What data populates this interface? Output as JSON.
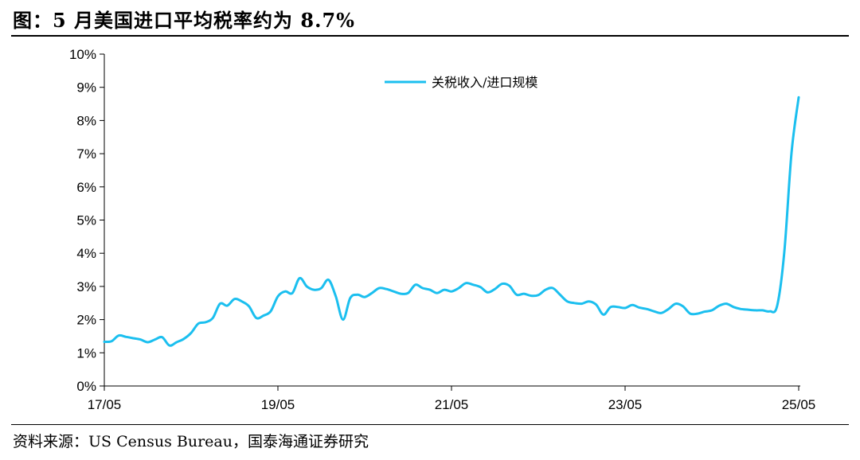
{
  "title": "图：5 月美国进口平均税率约为 8.7%",
  "source": "资料来源：US Census Bureau，国泰海通证券研究",
  "chart_data": {
    "type": "line",
    "ylim": [
      0,
      10
    ],
    "yticks": [
      "0%",
      "1%",
      "2%",
      "3%",
      "4%",
      "5%",
      "6%",
      "7%",
      "8%",
      "9%",
      "10%"
    ],
    "xticks": [
      {
        "label": "17/05",
        "pos": 0
      },
      {
        "label": "19/05",
        "pos": 24
      },
      {
        "label": "21/05",
        "pos": 48
      },
      {
        "label": "23/05",
        "pos": 72
      },
      {
        "label": "25/05",
        "pos": 96
      }
    ],
    "x_first": "2017-05",
    "x_last": "2025-05",
    "grid": false,
    "legend_position": "top-center",
    "series": [
      {
        "name": "关税收入/进口规模",
        "color": "#1BBFEF",
        "values": [
          1.33,
          1.35,
          1.52,
          1.48,
          1.44,
          1.4,
          1.32,
          1.4,
          1.47,
          1.22,
          1.32,
          1.42,
          1.6,
          1.88,
          1.92,
          2.05,
          2.48,
          2.42,
          2.62,
          2.55,
          2.4,
          2.05,
          2.12,
          2.25,
          2.7,
          2.85,
          2.8,
          3.25,
          3.0,
          2.9,
          2.95,
          3.2,
          2.7,
          2.0,
          2.65,
          2.75,
          2.68,
          2.8,
          2.95,
          2.92,
          2.85,
          2.78,
          2.8,
          3.05,
          2.95,
          2.9,
          2.8,
          2.9,
          2.85,
          2.95,
          3.1,
          3.05,
          2.98,
          2.82,
          2.92,
          3.08,
          3.02,
          2.75,
          2.78,
          2.72,
          2.74,
          2.9,
          2.95,
          2.75,
          2.55,
          2.5,
          2.48,
          2.55,
          2.45,
          2.15,
          2.38,
          2.38,
          2.35,
          2.44,
          2.36,
          2.32,
          2.25,
          2.2,
          2.32,
          2.48,
          2.4,
          2.18,
          2.18,
          2.24,
          2.28,
          2.42,
          2.48,
          2.38,
          2.32,
          2.3,
          2.28,
          2.28,
          2.25,
          2.4,
          4.0,
          7.0,
          8.7
        ]
      }
    ]
  }
}
